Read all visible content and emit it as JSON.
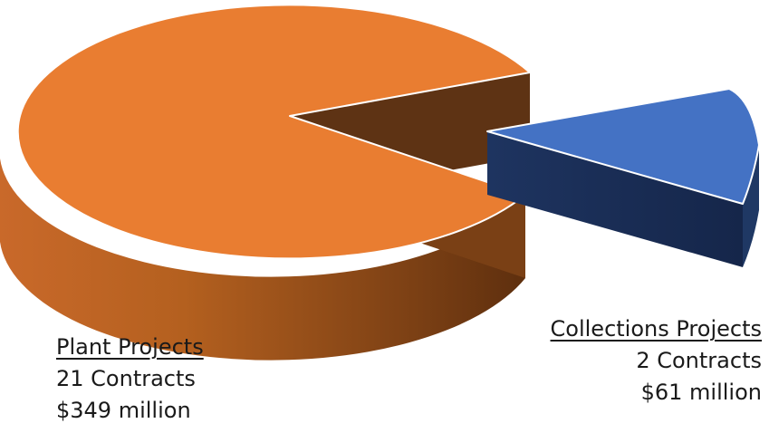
{
  "chart_data": {
    "type": "pie",
    "style": "3d-exploded",
    "slices": [
      {
        "label": "Plant Projects",
        "contracts_text": "21 Contracts",
        "amount_text": "$349 million",
        "value": 349,
        "contracts": 21,
        "color": "#E97D31",
        "side_color": "#A0561C"
      },
      {
        "label": "Collections Projects",
        "contracts_text": "2 Contracts",
        "amount_text": "$61 million",
        "value": 61,
        "contracts": 2,
        "color": "#4472C4",
        "side_color": "#1F3864"
      }
    ],
    "title": "",
    "legend": "none"
  }
}
